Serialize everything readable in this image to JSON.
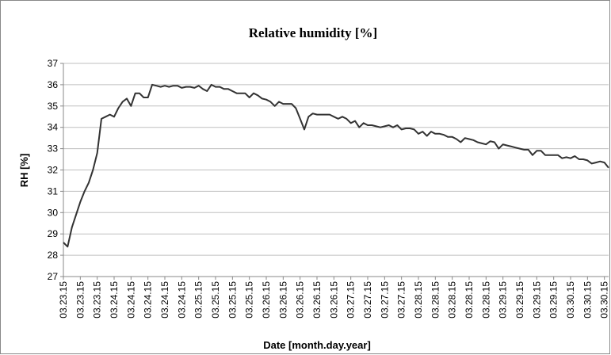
{
  "chart_data": {
    "type": "line",
    "title": "Relative humidity [%]",
    "ylabel": "RH [%]",
    "xlabel": "Date [month.day.year]",
    "ylim": [
      27,
      37
    ],
    "yticks": [
      27,
      28,
      29,
      30,
      31,
      32,
      33,
      34,
      35,
      36,
      37
    ],
    "grid": true,
    "color": "#333333",
    "categories": [
      "03.23.15",
      null,
      null,
      null,
      "03.23.15",
      null,
      null,
      null,
      "03.23.15",
      null,
      null,
      null,
      "03.24.15",
      null,
      null,
      null,
      "03.24.15",
      null,
      null,
      null,
      "03.24.15",
      null,
      null,
      null,
      "03.24.15",
      null,
      null,
      null,
      "03.24.15",
      null,
      null,
      null,
      "03.25.15",
      null,
      null,
      null,
      "03.25.15",
      null,
      null,
      null,
      "03.25.15",
      null,
      null,
      null,
      "03.25.15",
      null,
      null,
      null,
      "03.26.15",
      null,
      null,
      null,
      "03.26.15",
      null,
      null,
      null,
      "03.26.15",
      null,
      null,
      null,
      "03.26.15",
      null,
      null,
      null,
      "03.26.15",
      null,
      null,
      null,
      "03.27.15",
      null,
      null,
      null,
      "03.27.15",
      null,
      null,
      null,
      "03.27.15",
      null,
      null,
      null,
      "03.27.15",
      null,
      null,
      null,
      "03.28.15",
      null,
      null,
      null,
      "03.28.15",
      null,
      null,
      null,
      "03.28.15",
      null,
      null,
      null,
      "03.28.15",
      null,
      null,
      null,
      "03.28.15",
      null,
      null,
      null,
      "03.29.15",
      null,
      null,
      null,
      "03.29.15",
      null,
      null,
      null,
      "03.29.15",
      null,
      null,
      null,
      "03.29.15",
      null,
      null,
      null,
      "03.30.15",
      null,
      null,
      null,
      "03.30.15",
      null,
      null,
      null,
      "03.30.15",
      null
    ],
    "values": [
      28.6,
      28.4,
      29.3,
      29.9,
      30.5,
      31.0,
      31.4,
      32.0,
      32.8,
      34.4,
      34.5,
      34.6,
      34.5,
      34.9,
      35.2,
      35.35,
      35.0,
      35.6,
      35.6,
      35.4,
      35.4,
      36.0,
      35.95,
      35.9,
      35.95,
      35.9,
      35.95,
      35.95,
      35.85,
      35.9,
      35.9,
      35.85,
      35.95,
      35.8,
      35.7,
      36.0,
      35.9,
      35.9,
      35.8,
      35.8,
      35.7,
      35.6,
      35.6,
      35.6,
      35.4,
      35.6,
      35.5,
      35.35,
      35.3,
      35.2,
      35.0,
      35.2,
      35.1,
      35.1,
      35.1,
      34.9,
      34.4,
      33.9,
      34.5,
      34.65,
      34.6,
      34.6,
      34.6,
      34.6,
      34.5,
      34.4,
      34.5,
      34.4,
      34.2,
      34.3,
      34.0,
      34.2,
      34.1,
      34.1,
      34.05,
      34.0,
      34.05,
      34.1,
      34.0,
      34.1,
      33.9,
      33.95,
      33.95,
      33.9,
      33.7,
      33.8,
      33.6,
      33.8,
      33.7,
      33.7,
      33.65,
      33.55,
      33.55,
      33.45,
      33.3,
      33.5,
      33.45,
      33.4,
      33.3,
      33.25,
      33.2,
      33.35,
      33.3,
      33.0,
      33.2,
      33.15,
      33.1,
      33.05,
      33.0,
      32.95,
      32.95,
      32.7,
      32.9,
      32.9,
      32.7,
      32.7,
      32.7,
      32.7,
      32.55,
      32.6,
      32.55,
      32.65,
      32.5,
      32.5,
      32.45,
      32.3,
      32.35,
      32.4,
      32.35,
      32.1
    ]
  }
}
